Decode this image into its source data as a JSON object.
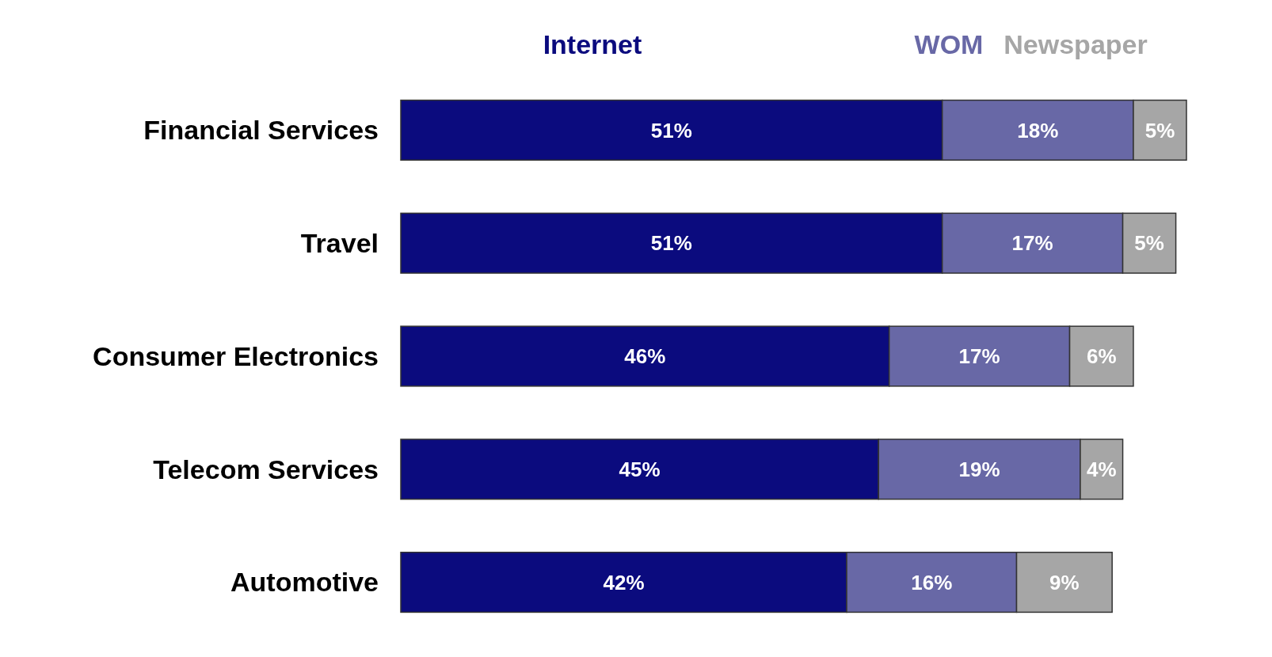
{
  "chart_data": {
    "type": "bar",
    "orientation": "horizontal",
    "stacked": true,
    "legend": "top right",
    "categories": [
      "Financial Services",
      "Travel",
      "Consumer Electronics",
      "Telecom Services",
      "Automotive"
    ],
    "series": [
      {
        "name": "Internet",
        "color": "#0b0b7e",
        "values": [
          51,
          51,
          46,
          45,
          42
        ],
        "value_labels": [
          "51%",
          "51%",
          "46%",
          "45%",
          "42%"
        ]
      },
      {
        "name": "WOM",
        "color": "#6868a6",
        "values": [
          18,
          17,
          17,
          19,
          16
        ],
        "value_labels": [
          "18%",
          "17%",
          "17%",
          "19%",
          "16%"
        ]
      },
      {
        "name": "Newspaper",
        "color": "#a6a6a6",
        "values": [
          5,
          5,
          6,
          4,
          9
        ],
        "value_labels": [
          "5%",
          "5%",
          "6%",
          "4%",
          "9%"
        ]
      }
    ]
  }
}
